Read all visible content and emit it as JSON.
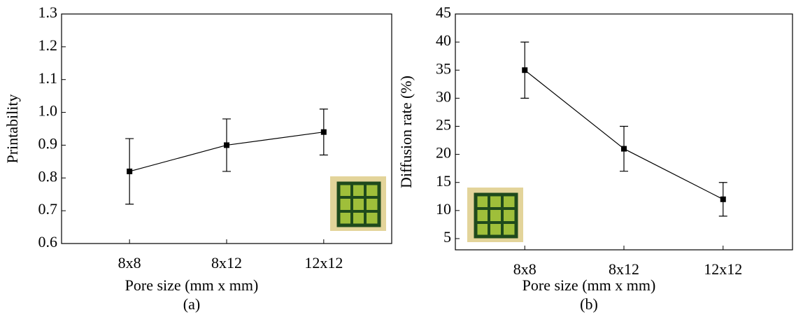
{
  "chart_data": [
    {
      "type": "line",
      "caption": "(a)",
      "xlabel": "Pore size (mm x mm)",
      "ylabel": "Printability",
      "categories": [
        "8x8",
        "8x12",
        "12x12"
      ],
      "series": [
        {
          "color": "#000000",
          "values": [
            0.82,
            0.9,
            0.94
          ],
          "errors": [
            0.1,
            0.08,
            0.07
          ]
        }
      ],
      "ylim": [
        0.6,
        1.3
      ],
      "yticks": [
        0.6,
        0.7,
        0.8,
        0.9,
        {
          "value": 1,
          "label": "1.0"
        },
        1.1,
        1.2,
        1.3
      ]
    },
    {
      "type": "line",
      "caption": "(b)",
      "xlabel": "Pore size (mm x mm)",
      "ylabel": "Diffusion rate (%)",
      "categories": [
        "8x8",
        "8x12",
        "12x12"
      ],
      "series": [
        {
          "color": "#000000",
          "values": [
            35,
            21,
            12
          ],
          "errors": [
            5,
            4,
            3
          ]
        }
      ],
      "ylim": [
        3,
        45
      ],
      "yticks": [
        5,
        10,
        15,
        20,
        25,
        30,
        35,
        40,
        45
      ]
    }
  ]
}
